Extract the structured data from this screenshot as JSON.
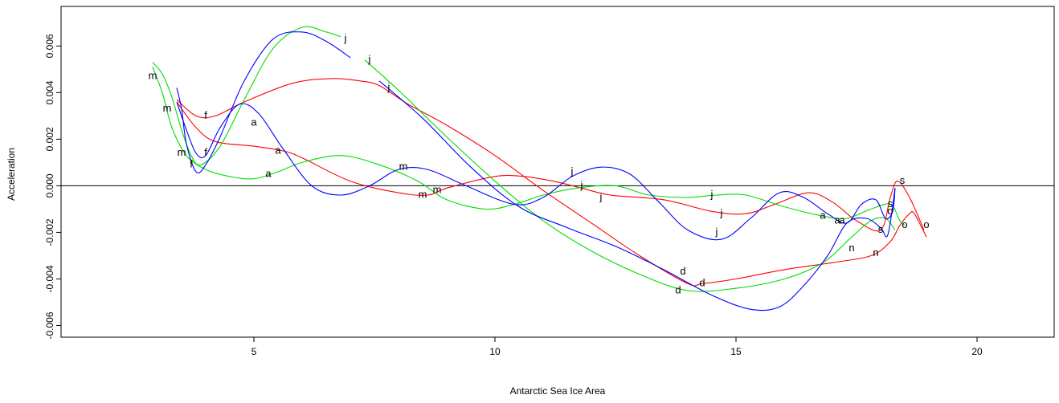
{
  "chart_data": {
    "type": "line",
    "title": "",
    "xlabel": "Antarctic Sea Ice Area",
    "ylabel": "Acceleration",
    "xlim": [
      1.0,
      21.6
    ],
    "ylim": [
      -0.0065,
      0.0077
    ],
    "xticks": [
      5,
      10,
      15,
      20
    ],
    "xtick_labels": [
      "5",
      "10",
      "15",
      "20"
    ],
    "yticks": [
      -0.006,
      -0.004,
      -0.002,
      0.0,
      0.002,
      0.004,
      0.006
    ],
    "ytick_labels": [
      "-0.006",
      "-0.004",
      "-0.002",
      "0.000",
      "0.002",
      "0.004",
      "0.006"
    ],
    "reference_line_y": 0.0,
    "grid": false,
    "series": [
      {
        "color": "#ff0000",
        "curve": [
          [
            3.4,
            0.0037
          ],
          [
            3.8,
            0.003
          ],
          [
            4.2,
            0.003
          ],
          [
            4.8,
            0.0036
          ],
          [
            5.8,
            0.0044
          ],
          [
            6.6,
            0.0046
          ],
          [
            7.2,
            0.0045
          ],
          [
            7.6,
            0.0043
          ],
          [
            8.2,
            0.0035
          ],
          [
            9.0,
            0.0026
          ],
          [
            10.0,
            0.0013
          ],
          [
            11.0,
            -0.0002
          ],
          [
            12.0,
            -0.0016
          ],
          [
            13.0,
            -0.003
          ],
          [
            14.0,
            -0.0042
          ],
          [
            14.3,
            -0.0042
          ],
          [
            15.0,
            -0.004
          ],
          [
            16.0,
            -0.0036
          ],
          [
            17.0,
            -0.0033
          ],
          [
            17.8,
            -0.003
          ],
          [
            18.2,
            -0.0024
          ],
          [
            18.4,
            -0.0017
          ],
          [
            18.6,
            -0.0012
          ],
          [
            18.7,
            -0.0012
          ],
          [
            18.95,
            -0.0022
          ]
        ],
        "curve2": [
          [
            3.4,
            0.0036
          ],
          [
            3.8,
            0.0025
          ],
          [
            4.2,
            0.0019
          ],
          [
            5.0,
            0.0017
          ],
          [
            5.6,
            0.0015
          ],
          [
            6.0,
            0.0012
          ],
          [
            7.0,
            0.0002
          ],
          [
            8.0,
            -0.0003
          ],
          [
            8.6,
            -0.0004
          ],
          [
            9.0,
            -0.0001
          ],
          [
            10.0,
            0.0004
          ],
          [
            10.6,
            0.0004
          ],
          [
            11.2,
            0.0002
          ],
          [
            11.8,
            -0.0001
          ],
          [
            12.4,
            -0.0004
          ],
          [
            13.5,
            -0.0006
          ],
          [
            14.5,
            -0.0011
          ],
          [
            15.2,
            -0.0012
          ],
          [
            15.8,
            -0.0008
          ],
          [
            16.5,
            -0.0003
          ],
          [
            17.0,
            -0.0007
          ],
          [
            17.5,
            -0.0015
          ],
          [
            18.0,
            -0.0019
          ],
          [
            18.2,
            -0.0005
          ],
          [
            18.35,
            0.0002
          ],
          [
            18.6,
            -0.0005
          ],
          [
            18.9,
            -0.0019
          ]
        ],
        "labels": [
          {
            "t": "f",
            "x": 4.0,
            "y": 0.003
          },
          {
            "t": "a",
            "x": 5.5,
            "y": 0.0015
          },
          {
            "t": "m",
            "x": 8.5,
            "y": -0.0004
          },
          {
            "t": "j",
            "x": 7.8,
            "y": 0.0042
          },
          {
            "t": "j",
            "x": 12.2,
            "y": -0.0005
          },
          {
            "t": "j",
            "x": 14.7,
            "y": -0.0012
          },
          {
            "t": "d",
            "x": 14.3,
            "y": -0.0042
          },
          {
            "t": "a",
            "x": 17.2,
            "y": -0.0015
          },
          {
            "t": "n",
            "x": 17.9,
            "y": -0.0029
          },
          {
            "t": "s",
            "x": 18.45,
            "y": 0.0002
          },
          {
            "t": "o",
            "x": 18.95,
            "y": -0.0017
          }
        ]
      },
      {
        "color": "#00dd00",
        "curve": [
          [
            2.9,
            0.0053
          ],
          [
            3.1,
            0.0048
          ],
          [
            3.3,
            0.0038
          ],
          [
            3.5,
            0.0024
          ],
          [
            3.7,
            0.0013
          ],
          [
            3.9,
            0.0009
          ],
          [
            4.3,
            0.0017
          ],
          [
            4.8,
            0.0037
          ],
          [
            5.4,
            0.0059
          ],
          [
            6.0,
            0.0068
          ],
          [
            6.5,
            0.0066
          ],
          [
            6.8,
            0.0064
          ]
        ],
        "curve2": [
          [
            2.9,
            0.0051
          ],
          [
            3.1,
            0.004
          ],
          [
            3.3,
            0.0025
          ],
          [
            3.6,
            0.0013
          ],
          [
            4.0,
            0.0007
          ],
          [
            4.5,
            0.0004
          ],
          [
            5.0,
            0.0003
          ],
          [
            5.5,
            0.0006
          ],
          [
            6.0,
            0.001
          ],
          [
            6.8,
            0.0013
          ],
          [
            7.6,
            0.0009
          ],
          [
            8.4,
            0.0002
          ],
          [
            9.0,
            -0.0006
          ],
          [
            9.8,
            -0.001
          ],
          [
            10.4,
            -0.0008
          ],
          [
            11.0,
            -0.0004
          ],
          [
            11.7,
            -0.0001
          ],
          [
            12.5,
            0.0
          ],
          [
            13.2,
            -0.0004
          ],
          [
            14.0,
            -0.0005
          ],
          [
            14.6,
            -0.0004
          ],
          [
            15.2,
            -0.0004
          ],
          [
            16.0,
            -0.0009
          ],
          [
            16.8,
            -0.0013
          ],
          [
            17.3,
            -0.0014
          ],
          [
            17.8,
            -0.001
          ],
          [
            18.2,
            -0.0008
          ],
          [
            18.4,
            -0.0015
          ],
          [
            18.5,
            -0.0017
          ]
        ],
        "curve3": [
          [
            7.3,
            0.0054
          ],
          [
            8.0,
            0.0041
          ],
          [
            9.0,
            0.0021
          ],
          [
            10.0,
            0.0002
          ],
          [
            11.0,
            -0.0015
          ],
          [
            12.0,
            -0.0028
          ],
          [
            13.0,
            -0.0038
          ],
          [
            14.0,
            -0.0045
          ],
          [
            15.0,
            -0.0044
          ],
          [
            16.0,
            -0.004
          ],
          [
            16.8,
            -0.0033
          ],
          [
            17.4,
            -0.0022
          ],
          [
            17.8,
            -0.0015
          ],
          [
            18.1,
            -0.0014
          ],
          [
            18.3,
            -0.0019
          ]
        ],
        "labels": [
          {
            "t": "f",
            "x": 3.7,
            "y": 0.0009
          },
          {
            "t": "m",
            "x": 3.2,
            "y": 0.0033
          },
          {
            "t": "a",
            "x": 5.3,
            "y": 0.0005
          },
          {
            "t": "m",
            "x": 8.8,
            "y": -0.0002
          },
          {
            "t": "j",
            "x": 7.4,
            "y": 0.0054
          },
          {
            "t": "j",
            "x": 11.8,
            "y": 0.0
          },
          {
            "t": "j",
            "x": 14.5,
            "y": -0.0004
          },
          {
            "t": "d",
            "x": 13.8,
            "y": -0.0045
          },
          {
            "t": "a",
            "x": 17.1,
            "y": -0.0015
          },
          {
            "t": "s",
            "x": 18.2,
            "y": -0.0008
          },
          {
            "t": "o",
            "x": 18.5,
            "y": -0.0017
          }
        ]
      },
      {
        "color": "#0000ff",
        "curve": [
          [
            3.4,
            0.0042
          ],
          [
            3.5,
            0.0033
          ],
          [
            3.6,
            0.0018
          ],
          [
            3.8,
            0.0006
          ],
          [
            4.0,
            0.0009
          ],
          [
            4.3,
            0.0021
          ],
          [
            4.8,
            0.0045
          ],
          [
            5.4,
            0.0063
          ],
          [
            6.0,
            0.0066
          ],
          [
            6.5,
            0.0062
          ],
          [
            7.0,
            0.0055
          ]
        ],
        "curve2": [
          [
            3.4,
            0.0036
          ],
          [
            3.6,
            0.0024
          ],
          [
            3.8,
            0.0014
          ],
          [
            4.0,
            0.0013
          ],
          [
            4.3,
            0.0025
          ],
          [
            4.7,
            0.0035
          ],
          [
            5.1,
            0.0031
          ],
          [
            5.6,
            0.0016
          ],
          [
            6.2,
            0.0
          ],
          [
            6.8,
            -0.0004
          ],
          [
            7.4,
            0.0
          ],
          [
            8.0,
            0.0007
          ],
          [
            8.6,
            0.0007
          ],
          [
            9.4,
            0.0
          ],
          [
            10.4,
            -0.0008
          ],
          [
            11.0,
            -0.0005
          ],
          [
            11.6,
            0.0004
          ],
          [
            12.2,
            0.0008
          ],
          [
            12.8,
            0.0005
          ],
          [
            13.4,
            -0.0007
          ],
          [
            14.0,
            -0.0019
          ],
          [
            14.7,
            -0.0023
          ],
          [
            15.3,
            -0.0014
          ],
          [
            15.9,
            -0.0003
          ],
          [
            16.4,
            -0.0005
          ],
          [
            16.9,
            -0.0012
          ],
          [
            17.3,
            -0.0016
          ],
          [
            17.6,
            -0.0008
          ],
          [
            17.9,
            -0.0006
          ],
          [
            18.1,
            -0.0014
          ],
          [
            18.25,
            -0.0011
          ],
          [
            18.3,
            -0.0001
          ]
        ],
        "curve3": [
          [
            7.6,
            0.0045
          ],
          [
            8.5,
            0.0029
          ],
          [
            9.5,
            0.0008
          ],
          [
            10.5,
            -0.0009
          ],
          [
            11.5,
            -0.0018
          ],
          [
            12.5,
            -0.0026
          ],
          [
            13.5,
            -0.0036
          ],
          [
            14.5,
            -0.0047
          ],
          [
            15.3,
            -0.0053
          ],
          [
            15.9,
            -0.0052
          ],
          [
            16.4,
            -0.0043
          ],
          [
            16.9,
            -0.003
          ],
          [
            17.3,
            -0.0016
          ],
          [
            17.7,
            -0.0014
          ],
          [
            18.0,
            -0.0018
          ],
          [
            18.15,
            -0.0021
          ],
          [
            18.3,
            -0.0001
          ]
        ],
        "labels": [
          {
            "t": "m",
            "x": 2.9,
            "y": 0.0047
          },
          {
            "t": "m",
            "x": 3.5,
            "y": 0.0014
          },
          {
            "t": "f",
            "x": 4.0,
            "y": 0.0014
          },
          {
            "t": "a",
            "x": 5.0,
            "y": 0.0027
          },
          {
            "t": "m",
            "x": 8.1,
            "y": 0.0008
          },
          {
            "t": "j",
            "x": 6.9,
            "y": 0.0063
          },
          {
            "t": "j",
            "x": 11.6,
            "y": 0.0006
          },
          {
            "t": "j",
            "x": 14.6,
            "y": -0.002
          },
          {
            "t": "d",
            "x": 13.9,
            "y": -0.0037
          },
          {
            "t": "a",
            "x": 16.8,
            "y": -0.0013
          },
          {
            "t": "n",
            "x": 17.4,
            "y": -0.0027
          },
          {
            "t": "s",
            "x": 18.0,
            "y": -0.0019
          },
          {
            "t": "o",
            "x": 18.2,
            "y": -0.0011
          }
        ]
      }
    ]
  }
}
